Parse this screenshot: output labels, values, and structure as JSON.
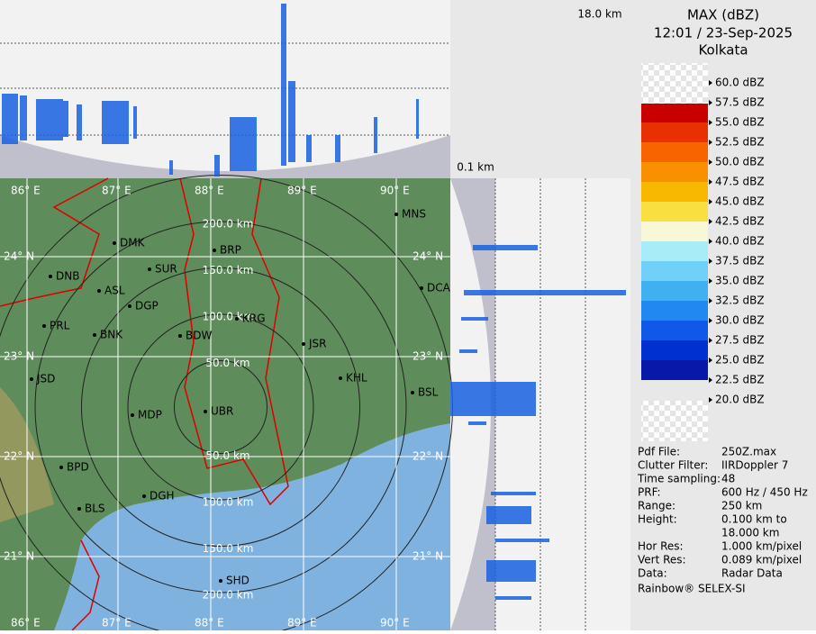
{
  "header": {
    "title": "MAX (dBZ)",
    "datetime": "12:01 / 23-Sep-2025",
    "station": "Kolkata"
  },
  "cross_section": {
    "top_height": "18.0 km",
    "bottom_height": "0.1 km"
  },
  "legend": [
    {
      "label": "60.0 dBZ"
    },
    {
      "label": "57.5 dBZ",
      "color": "#9a0000"
    },
    {
      "label": "55.0 dBZ",
      "color": "#c80000"
    },
    {
      "label": "52.5 dBZ",
      "color": "#e83000"
    },
    {
      "label": "50.0 dBZ",
      "color": "#f86400"
    },
    {
      "label": "47.5 dBZ",
      "color": "#f89000"
    },
    {
      "label": "45.0 dBZ",
      "color": "#f8b800"
    },
    {
      "label": "42.5 dBZ",
      "color": "#f8e040"
    },
    {
      "label": "40.0 dBZ",
      "color": "#f8f8d8"
    },
    {
      "label": "37.5 dBZ",
      "color": "#a8ecf8"
    },
    {
      "label": "35.0 dBZ",
      "color": "#70d0f8"
    },
    {
      "label": "32.5 dBZ",
      "color": "#40b0f0"
    },
    {
      "label": "30.0 dBZ",
      "color": "#2088f0"
    },
    {
      "label": "27.5 dBZ",
      "color": "#1058e8"
    },
    {
      "label": "25.0 dBZ",
      "color": "#0030d0"
    },
    {
      "label": "22.5 dBZ",
      "color": "#0818a8"
    },
    {
      "label": "20.0 dBZ"
    }
  ],
  "metadata": [
    {
      "key": "Pdf File:",
      "value": [
        "250Z.max"
      ]
    },
    {
      "key": "Clutter Filter:",
      "value": [
        "IIRDoppler 7"
      ]
    },
    {
      "key": "Time sampling:",
      "value": [
        "48"
      ]
    },
    {
      "key": "PRF:",
      "value": [
        "600 Hz / 450 Hz"
      ]
    },
    {
      "key": "Range:",
      "value": [
        "250 km"
      ]
    },
    {
      "key": "Height:",
      "value": [
        "0.100 km to",
        "18.000 km"
      ]
    },
    {
      "key": "Hor Res:",
      "value": [
        "1.000 km/pixel"
      ]
    },
    {
      "key": "Vert Res:",
      "value": [
        "0.089 km/pixel"
      ]
    },
    {
      "key": "Data:",
      "value": [
        "Radar Data"
      ]
    }
  ],
  "footer": "Rainbow® SELEX-SI",
  "map": {
    "longitudes": [
      "86° E",
      "87° E",
      "88° E",
      "89° E",
      "90° E"
    ],
    "latitudes": [
      "24° N",
      "23° N",
      "22° N",
      "21° N"
    ],
    "range_rings_north": [
      "200.0 km",
      "150.0 km",
      "100.0 km",
      "50.0 km"
    ],
    "range_rings_south": [
      "50.0 km",
      "100.0 km",
      "150.0 km",
      "200.0 km"
    ],
    "cities": [
      "MNS",
      "DMK",
      "BRP",
      "SUR",
      "DNB",
      "ASL",
      "DGP",
      "DCA",
      "PRL",
      "BNK",
      "BDW",
      "KRG",
      "JSR",
      "KHL",
      "BSL",
      "JSD",
      "MDP",
      "UBR",
      "DGH",
      "BPD",
      "BLS",
      "SHD"
    ]
  }
}
